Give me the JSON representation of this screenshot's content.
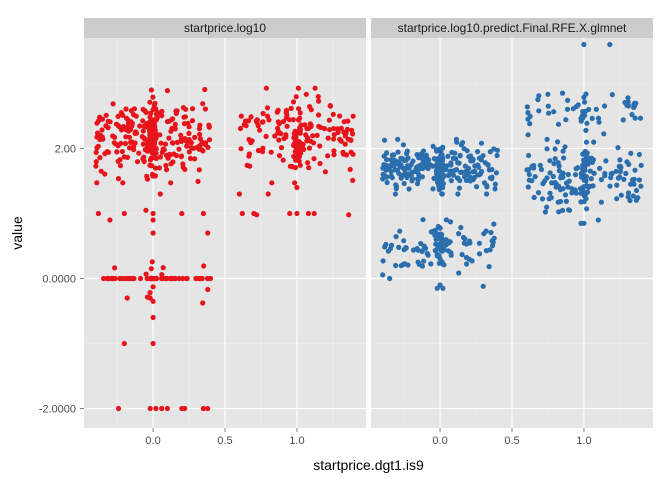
{
  "chart_data": {
    "type": "scatter",
    "facet": "jittered scatter, two panels",
    "xlabel": "startprice.dgt1.is9",
    "ylabel": "value",
    "ylim": [
      -2.3,
      3.7
    ],
    "xlim": [
      -0.48,
      1.48
    ],
    "x_ticks": [
      {
        "value": 0.0,
        "label": "0.0"
      },
      {
        "value": 0.5,
        "label": "0.5"
      },
      {
        "value": 1.0,
        "label": "1.0"
      }
    ],
    "y_ticks": [
      {
        "value": 2.0,
        "label": "2.00"
      },
      {
        "value": 0.0,
        "label": "0.0000"
      },
      {
        "value": -2.0,
        "label": "-2.0000"
      }
    ],
    "grid": true,
    "legend": "none",
    "panel_background": "#e5e5e5",
    "strip_background": "#cccccc",
    "panels": [
      {
        "title": "startprice.log10",
        "color": "#e8141c",
        "groups": [
          {
            "x": 0.0,
            "jitter": 0.4,
            "bands": [
              {
                "y_center": 2.2,
                "y_spread": 0.52,
                "count": 300
              },
              {
                "y_center": 0.0,
                "y_spread": 0.0,
                "count": 60
              },
              {
                "y_center": 0.0,
                "y_spread": 0.35,
                "count": 12
              }
            ]
          },
          {
            "x": 1.0,
            "jitter": 0.4,
            "bands": [
              {
                "y_center": 2.2,
                "y_spread": 0.52,
                "count": 180
              }
            ]
          }
        ],
        "points": [
          [
            -0.38,
            1.0
          ],
          [
            0.2,
            1.0
          ],
          [
            0.38,
            0.7
          ],
          [
            -0.3,
            0.9
          ],
          [
            0.0,
            0.7
          ],
          [
            0.0,
            0.9
          ],
          [
            0.0,
            1.0
          ],
          [
            -0.05,
            1.05
          ],
          [
            0.05,
            1.3
          ],
          [
            -0.2,
            1.0
          ],
          [
            0.35,
            1.0
          ],
          [
            -0.18,
            -0.3
          ],
          [
            -0.02,
            -0.3
          ],
          [
            0.0,
            -0.35
          ],
          [
            0.0,
            -0.6
          ],
          [
            -0.2,
            -1.0
          ],
          [
            0.0,
            -1.0
          ],
          [
            -0.24,
            -2.0
          ],
          [
            -0.02,
            -2.0
          ],
          [
            0.02,
            -2.0
          ],
          [
            0.06,
            -2.0
          ],
          [
            0.1,
            -2.0
          ],
          [
            0.2,
            -2.0
          ],
          [
            0.22,
            -2.0
          ],
          [
            0.35,
            -2.0
          ],
          [
            0.38,
            -2.0
          ],
          [
            0.7,
            1.0
          ],
          [
            0.72,
            0.98
          ],
          [
            0.95,
            1.0
          ],
          [
            1.0,
            1.0
          ],
          [
            1.08,
            1.0
          ],
          [
            1.12,
            1.0
          ],
          [
            1.36,
            0.98
          ],
          [
            0.6,
            1.3
          ],
          [
            0.62,
            1.0
          ],
          [
            0.8,
            1.3
          ],
          [
            1.0,
            1.4
          ]
        ]
      },
      {
        "title": "startprice.log10.predict.Final.RFE.X.glmnet",
        "color": "#2b6ead",
        "groups": [
          {
            "x": 0.0,
            "jitter": 0.4,
            "bands": [
              {
                "y_center": 1.72,
                "y_spread": 0.3,
                "count": 280
              },
              {
                "y_center": 0.5,
                "y_spread": 0.33,
                "count": 110
              }
            ]
          },
          {
            "x": 1.0,
            "jitter": 0.4,
            "bands": [
              {
                "y_center": 2.6,
                "y_spread": 0.3,
                "count": 55
              },
              {
                "y_center": 1.55,
                "y_spread": 0.5,
                "count": 170
              }
            ]
          }
        ],
        "points": [
          [
            1.0,
            3.6
          ],
          [
            1.18,
            3.6
          ],
          [
            0.0,
            -0.1
          ],
          [
            -0.02,
            -0.15
          ],
          [
            0.02,
            -0.15
          ],
          [
            0.3,
            -0.12
          ],
          [
            -0.35,
            0.0
          ],
          [
            1.0,
            0.85
          ],
          [
            1.1,
            0.9
          ],
          [
            0.9,
            1.05
          ],
          [
            1.32,
            1.2
          ],
          [
            0.65,
            1.7
          ],
          [
            0.62,
            1.6
          ]
        ]
      }
    ]
  }
}
